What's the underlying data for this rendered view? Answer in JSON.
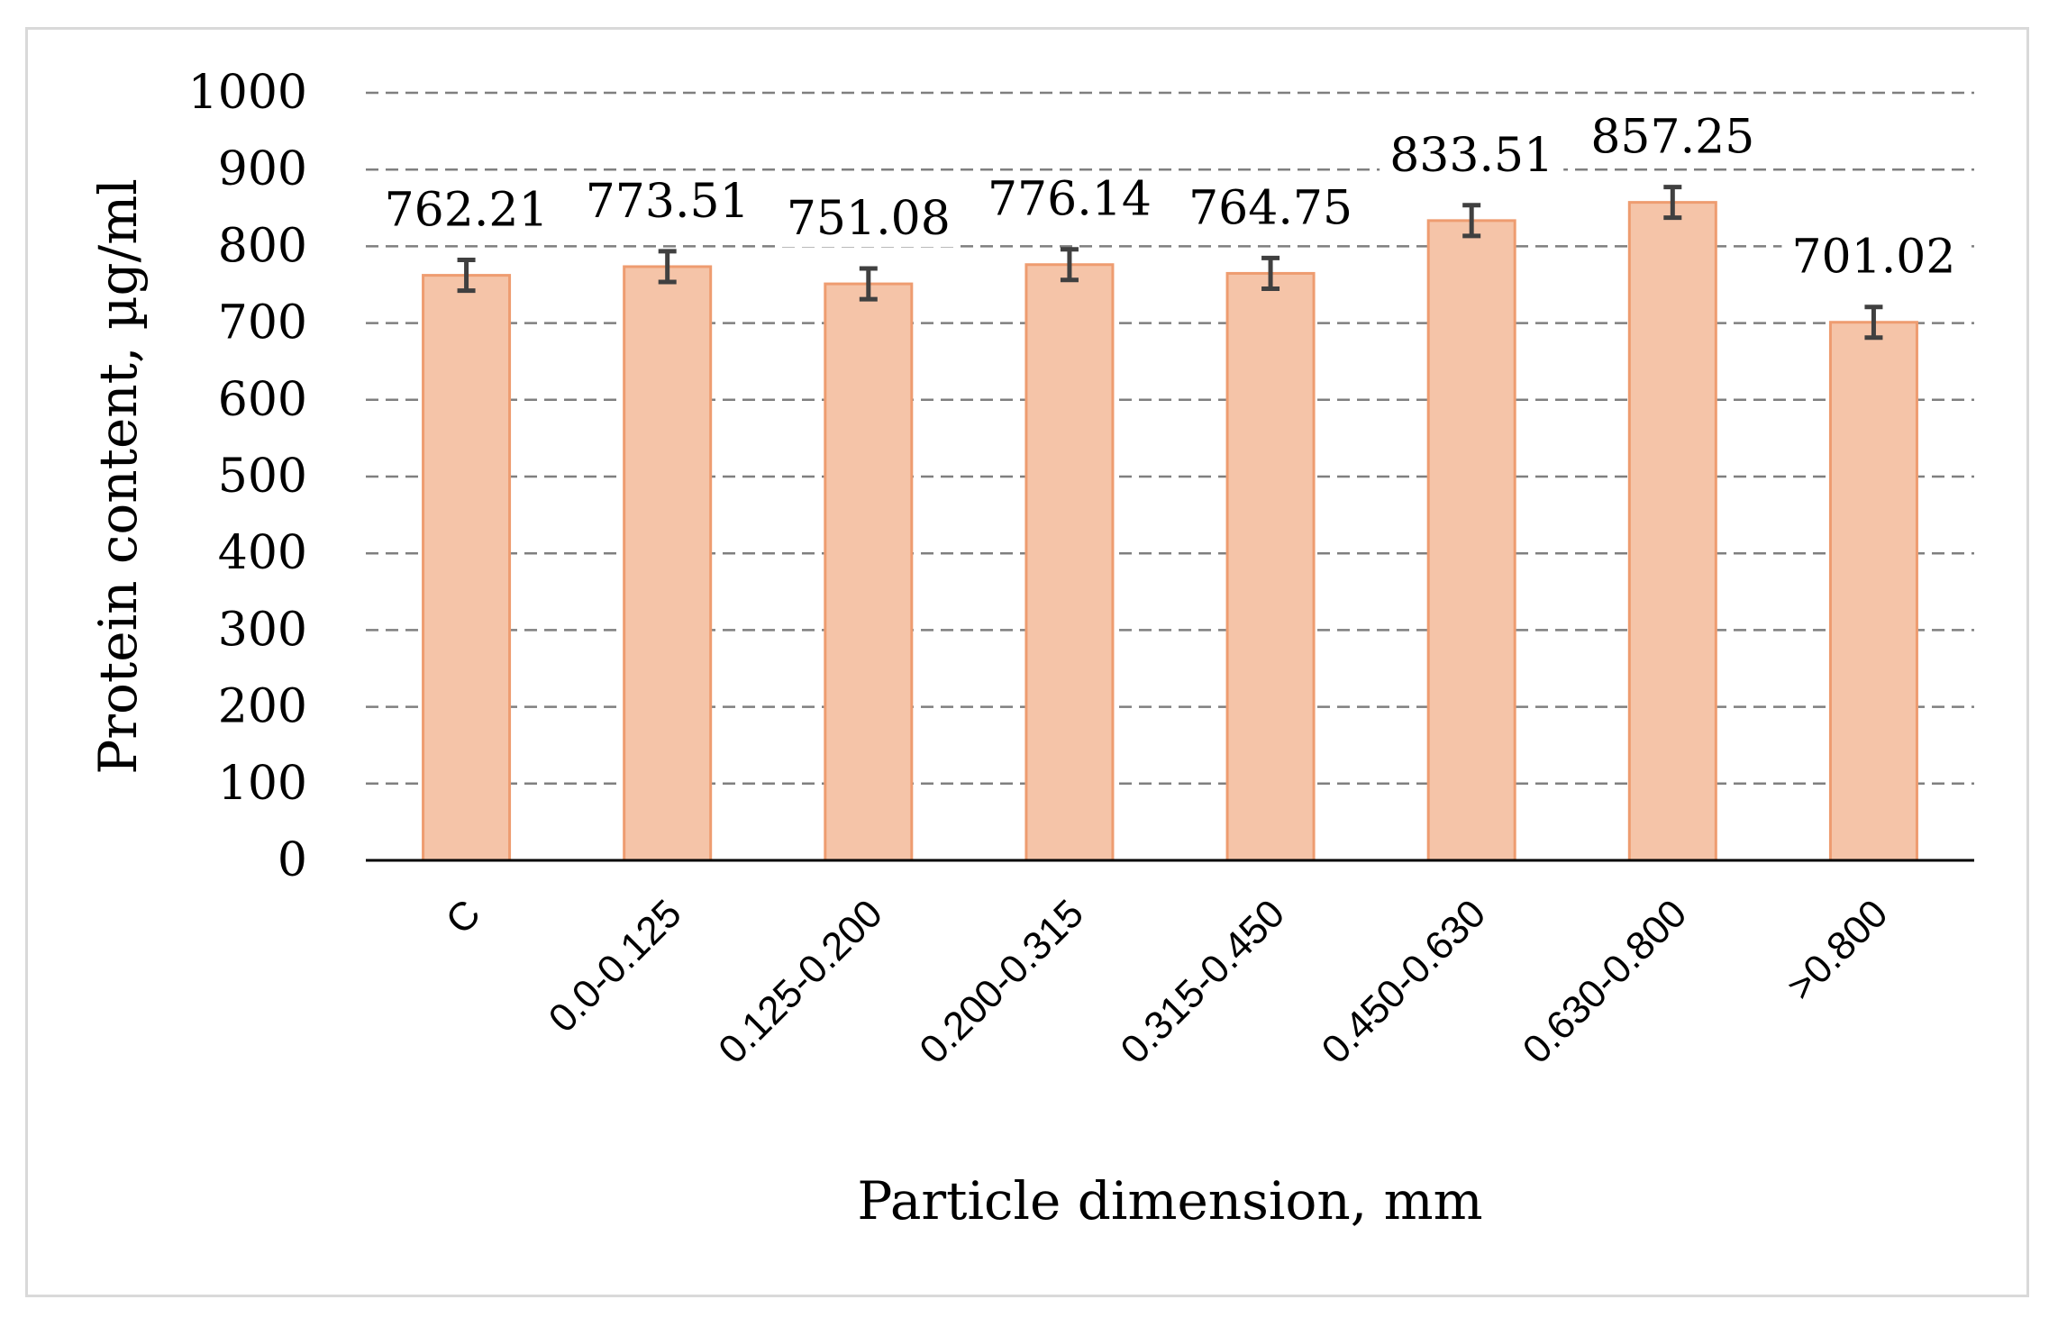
{
  "chart_data": {
    "type": "bar",
    "title": "",
    "xlabel": "Particle dimension, mm",
    "ylabel": "Protein content,  µg/ml",
    "categories": [
      "C",
      "0.0-0.125",
      "0.125-0.200",
      "0.200-0.315",
      "0.315-0.450",
      "0.450-0.630",
      "0.630-0.800",
      ">0.800"
    ],
    "values": [
      762.21,
      773.51,
      751.08,
      776.14,
      764.75,
      833.51,
      857.25,
      701.02
    ],
    "value_labels": [
      "762.21",
      "773.51",
      "751.08",
      "776.14",
      "764.75",
      "833.51",
      "857.25",
      "701.02"
    ],
    "error": [
      20,
      20,
      20,
      20,
      20,
      20,
      20,
      20
    ],
    "ylim": [
      0,
      1000
    ],
    "yticks": [
      0,
      100,
      200,
      300,
      400,
      500,
      600,
      700,
      800,
      900,
      1000
    ],
    "grid": "horizontal dashed",
    "legend": "none",
    "colors": {
      "bar_fill": "#f5c4a8",
      "bar_stroke": "#ee9c70",
      "grid": "#7f7f7f",
      "axis": "#000000",
      "error_bar": "#404040",
      "frame_border": "#d9d9d9"
    }
  }
}
